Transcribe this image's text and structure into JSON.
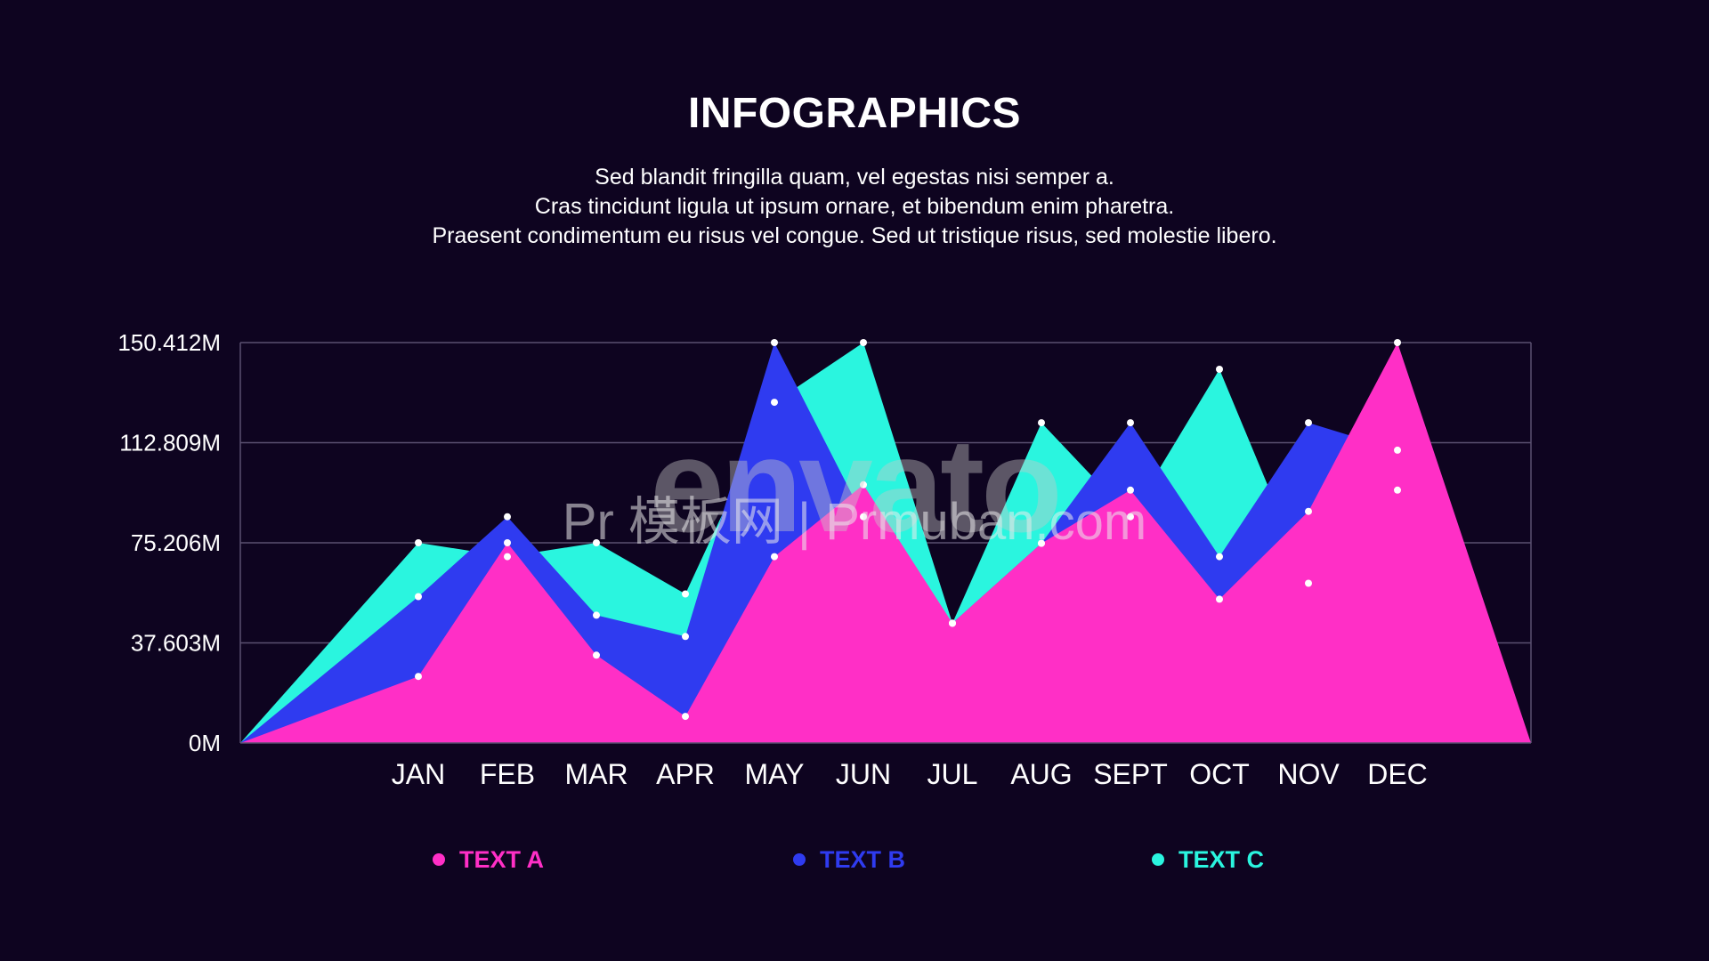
{
  "header": {
    "title": "INFOGRAPHICS",
    "subtitle_lines": [
      "Sed blandit fringilla quam, vel egestas nisi semper a.",
      "Cras tincidunt ligula ut ipsum ornare, et bibendum enim pharetra.",
      "Praesent condimentum eu risus vel congue. Sed ut tristique risus, sed molestie libero."
    ]
  },
  "watermark": {
    "brand": "envato",
    "site": "Pr 模板网 | Prmuban.com"
  },
  "colors": {
    "background": "#0e0420",
    "text_a": "#ff2fc6",
    "text_b": "#2f3bf0",
    "text_c": "#2af5df",
    "grid": "#5a5070"
  },
  "chart_data": {
    "type": "area",
    "title": "",
    "xlabel": "",
    "ylabel": "",
    "categories": [
      "JAN",
      "FEB",
      "MAR",
      "APR",
      "MAY",
      "JUN",
      "JUL",
      "AUG",
      "SEPT",
      "OCT",
      "NOV",
      "DEC"
    ],
    "y_ticks": [
      "0M",
      "37.603M",
      "75.206M",
      "112.809M",
      "150.412M"
    ],
    "ylim": [
      0,
      150.412
    ],
    "grid": true,
    "legend_position": "bottom",
    "series": [
      {
        "name": "TEXT C",
        "color": "#2af5df",
        "values": [
          75.2,
          70.0,
          75.2,
          56.0,
          128.0,
          150.4,
          45.0,
          120.3,
          85.0,
          140.4,
          60.0,
          95.0
        ]
      },
      {
        "name": "TEXT B",
        "color": "#2f3bf0",
        "values": [
          55.0,
          85.0,
          48.0,
          40.0,
          150.4,
          85.0,
          45.0,
          75.0,
          120.3,
          70.0,
          120.3,
          110.0
        ]
      },
      {
        "name": "TEXT A",
        "color": "#ff2fc6",
        "values": [
          25.0,
          75.2,
          33.0,
          10.0,
          70.0,
          97.0,
          45.0,
          75.0,
          95.0,
          54.0,
          87.0,
          150.4
        ]
      }
    ]
  }
}
